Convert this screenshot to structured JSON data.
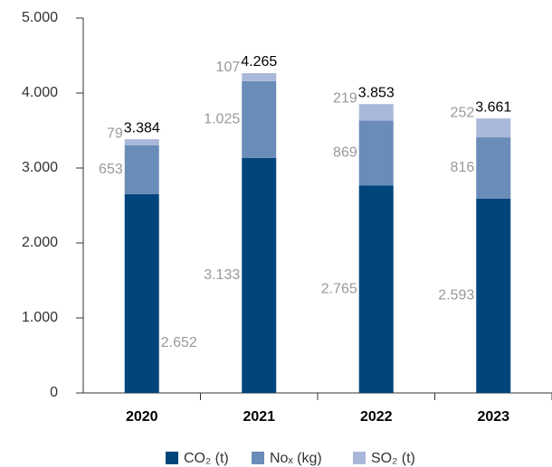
{
  "chart_data": {
    "type": "stacked-bar",
    "categories": [
      "2020",
      "2021",
      "2022",
      "2023"
    ],
    "series": [
      {
        "name": "CO₂ (t)",
        "color": "#00457c",
        "values": [
          2652,
          3133,
          2765,
          2593
        ],
        "value_labels": [
          "2.652",
          "3.133",
          "2.765",
          "2.593"
        ]
      },
      {
        "name": "Noₓ (kg)",
        "color": "#6a8cb8",
        "values": [
          653,
          1025,
          869,
          816
        ],
        "value_labels": [
          "653",
          "1.025",
          "869",
          "816"
        ]
      },
      {
        "name": "SO₂ (t)",
        "color": "#a9b8da",
        "values": [
          79,
          107,
          219,
          252
        ],
        "value_labels": [
          "79",
          "107",
          "219",
          "252"
        ]
      }
    ],
    "totals": {
      "values": [
        3384,
        4265,
        3853,
        3661
      ],
      "value_labels": [
        "3.384",
        "4.265",
        "3.853",
        "3.661"
      ]
    },
    "ylim": [
      0,
      5000
    ],
    "yticks": [
      0,
      {
        "value": 1000,
        "label": "1.000"
      },
      {
        "value": 2000,
        "label": "2.000"
      },
      {
        "value": 3000,
        "label": "3.000"
      },
      {
        "value": 4000,
        "label": "4.000"
      },
      {
        "value": 5000,
        "label": "5.000"
      }
    ]
  }
}
